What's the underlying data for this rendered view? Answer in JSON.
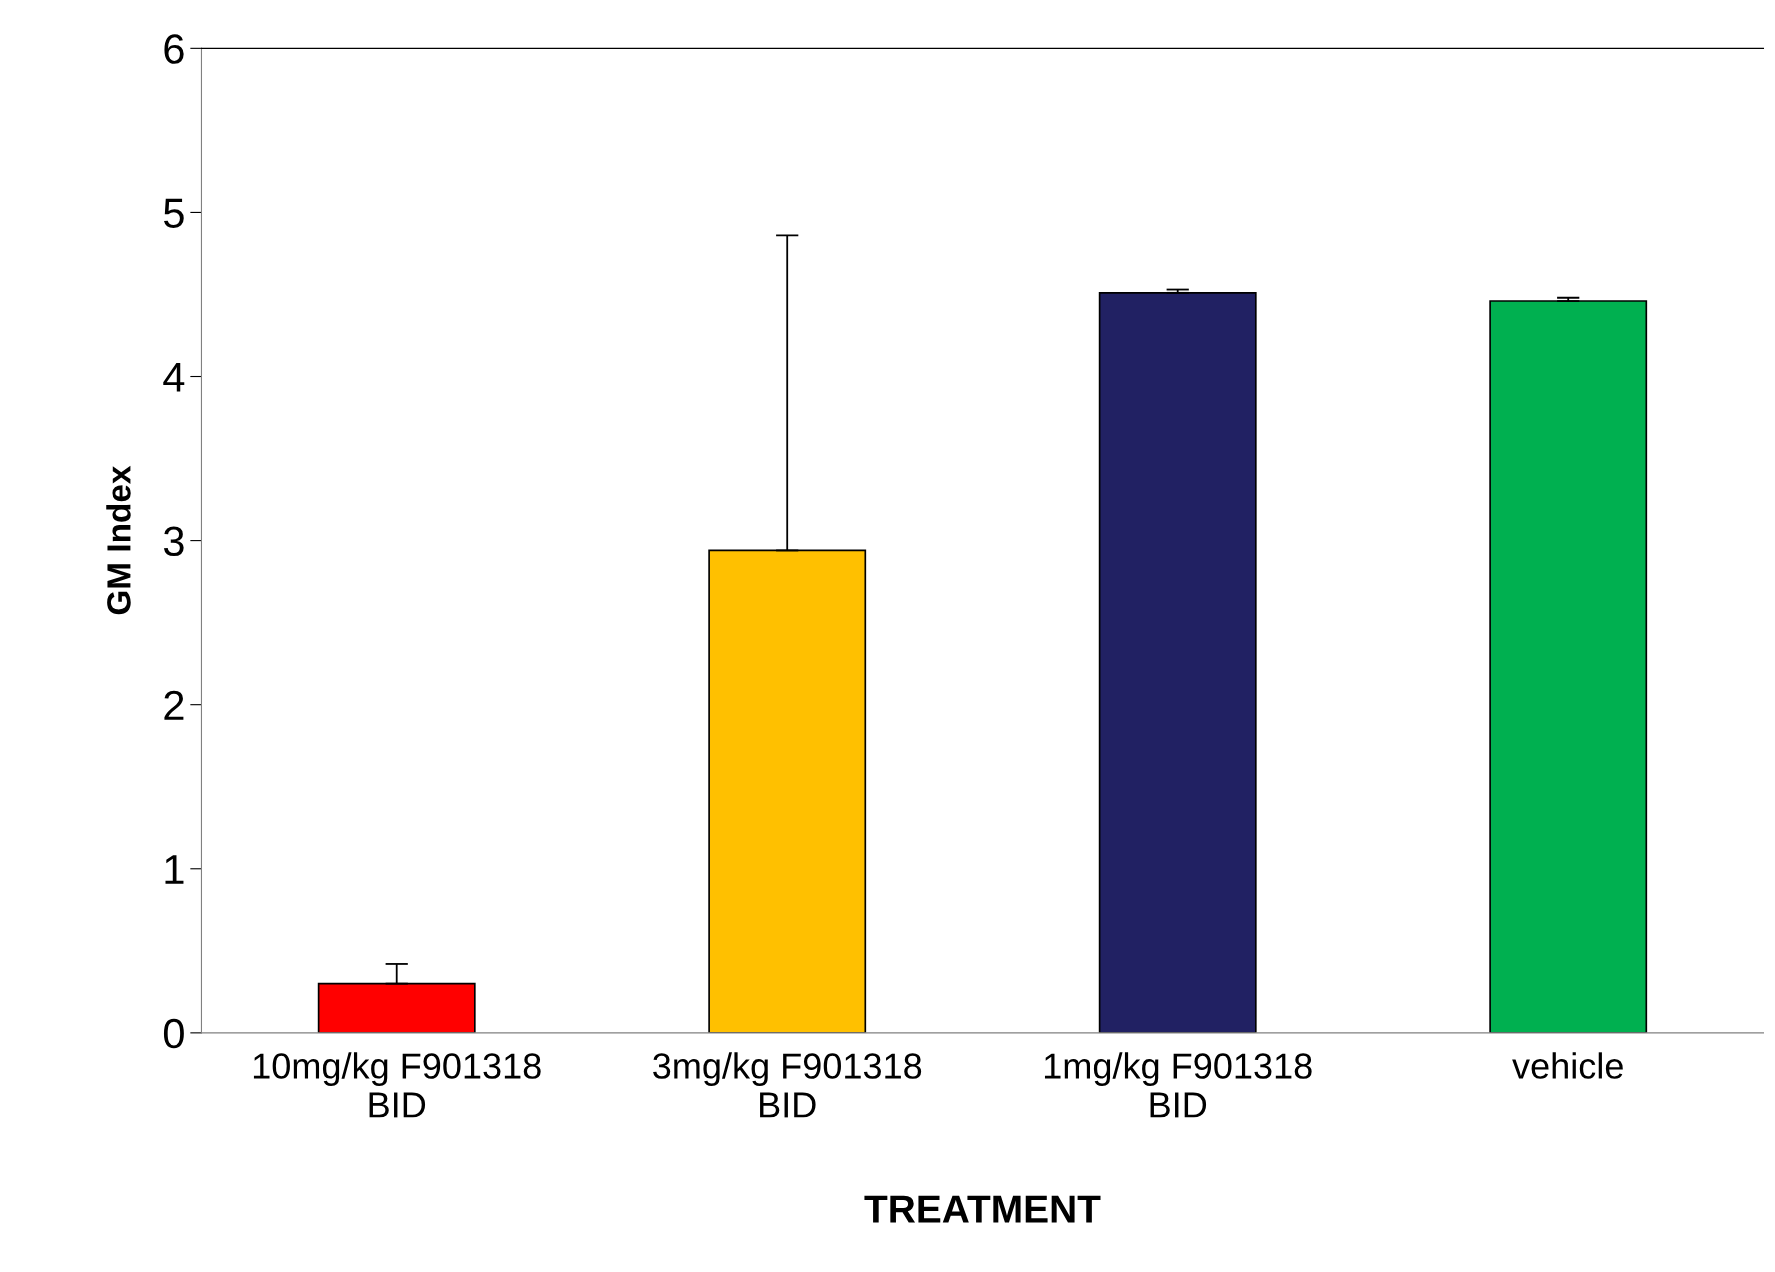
{
  "chart_data": {
    "type": "bar",
    "xlabel": "TREATMENT",
    "ylabel": "GM Index",
    "categories": [
      "10mg/kg F901318\nBID",
      "3mg/kg F901318\nBID",
      "1mg/kg F901318\nBID",
      "vehicle"
    ],
    "values": [
      0.3,
      2.94,
      4.51,
      4.46
    ],
    "colors": [
      "#ff0000",
      "#ffc000",
      "#212163",
      "#00b050"
    ],
    "errors": [
      [
        0.3,
        0.42
      ],
      [
        2.94,
        4.86
      ],
      [
        4.51,
        4.53
      ],
      [
        4.46,
        4.48
      ]
    ],
    "ylim": [
      0,
      6
    ],
    "yticks": [
      0,
      1,
      2,
      3,
      4,
      5,
      6
    ],
    "grid": false,
    "legend": false
  }
}
